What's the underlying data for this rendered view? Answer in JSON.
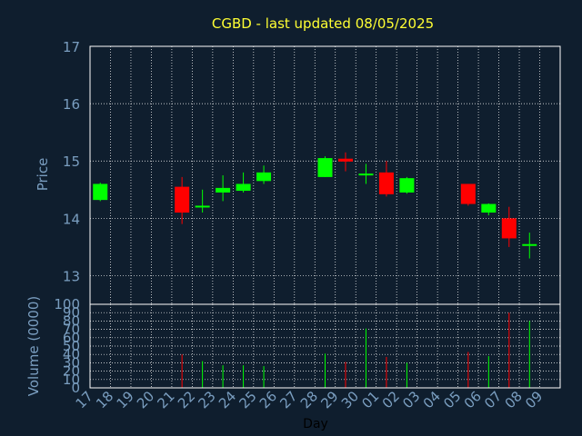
{
  "chart_data": {
    "type": "candlestick",
    "title": "CGBD - last updated 08/05/2025",
    "xlabel": "Day",
    "colors": {
      "background": "#0f1e2e",
      "up": "#00ff00",
      "down": "#ff0000",
      "grid": "#ffffff",
      "axis_text": "#7a9ec0",
      "title": "#ffff33"
    },
    "days": [
      "17",
      "18",
      "19",
      "20",
      "21",
      "22",
      "23",
      "24",
      "25",
      "26",
      "27",
      "28",
      "29",
      "30",
      "01",
      "02",
      "03",
      "04",
      "05",
      "06",
      "07",
      "08",
      "09"
    ],
    "price_panel": {
      "ylabel": "Price",
      "ylim": [
        12.5,
        17
      ],
      "yticks": [
        13,
        14,
        15,
        16,
        17
      ],
      "grid": true
    },
    "volume_panel": {
      "ylabel": "Volume (0000)",
      "ylim": [
        0,
        100
      ],
      "yticks": [
        0,
        10,
        20,
        30,
        40,
        50,
        60,
        70,
        80,
        90,
        100
      ],
      "grid": true
    },
    "candles": [
      {
        "day": "17",
        "open": 14.32,
        "close": 14.6,
        "high": 14.62,
        "low": 14.3,
        "volume": 0
      },
      {
        "day": "21",
        "open": 14.55,
        "close": 14.1,
        "high": 14.72,
        "low": 13.9,
        "volume": 40
      },
      {
        "day": "22",
        "open": 14.22,
        "close": 14.22,
        "high": 14.5,
        "low": 14.1,
        "volume": 32
      },
      {
        "day": "23",
        "open": 14.45,
        "close": 14.53,
        "high": 14.75,
        "low": 14.3,
        "volume": 27
      },
      {
        "day": "24",
        "open": 14.48,
        "close": 14.6,
        "high": 14.8,
        "low": 14.45,
        "volume": 27
      },
      {
        "day": "25",
        "open": 14.65,
        "close": 14.8,
        "high": 14.92,
        "low": 14.6,
        "volume": 26
      },
      {
        "day": "28",
        "open": 14.72,
        "close": 15.05,
        "high": 15.08,
        "low": 14.72,
        "volume": 41
      },
      {
        "day": "29",
        "open": 15.04,
        "close": 14.99,
        "high": 15.15,
        "low": 14.82,
        "volume": 31
      },
      {
        "day": "30",
        "open": 14.75,
        "close": 14.78,
        "high": 14.95,
        "low": 14.6,
        "volume": 71
      },
      {
        "day": "01",
        "open": 14.8,
        "close": 14.42,
        "high": 15.0,
        "low": 14.38,
        "volume": 37
      },
      {
        "day": "02",
        "open": 14.45,
        "close": 14.7,
        "high": 14.72,
        "low": 14.43,
        "volume": 30
      },
      {
        "day": "05",
        "open": 14.6,
        "close": 14.25,
        "high": 14.6,
        "low": 14.22,
        "volume": 43
      },
      {
        "day": "06",
        "open": 14.1,
        "close": 14.25,
        "high": 14.26,
        "low": 14.05,
        "volume": 38
      },
      {
        "day": "07",
        "open": 14.0,
        "close": 13.65,
        "high": 14.2,
        "low": 13.5,
        "volume": 90
      },
      {
        "day": "08",
        "open": 13.52,
        "close": 13.55,
        "high": 13.75,
        "low": 13.3,
        "volume": 80
      }
    ]
  }
}
